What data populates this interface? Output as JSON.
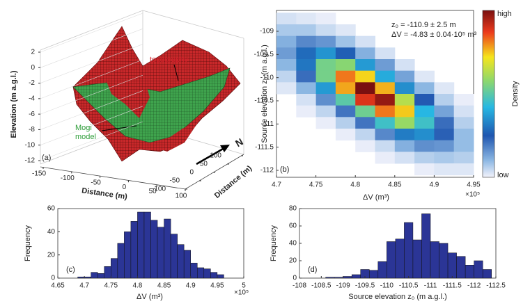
{
  "chart_data": [
    {
      "type": "surface3d",
      "panel_label": "(a)",
      "z_label": "Elevation (m a.g.l.)",
      "x_label": "Distance (m)",
      "y_label": "Distance (m)",
      "zticks": [
        2,
        0,
        -2,
        -4,
        -6,
        -8,
        -10,
        -12
      ],
      "xticks": [
        -150,
        -100,
        -50,
        0,
        50,
        100
      ],
      "yticks": [
        100,
        50,
        0,
        -50,
        -100
      ],
      "annotations": [
        "topography",
        "Mogi model"
      ],
      "north_label": "N"
    },
    {
      "type": "heatmap",
      "panel_label": "(b)",
      "x_label": "ΔV (m³)",
      "y_label": "Source elevation z₀ (m a.g.l.)",
      "x_offset_label": "×10⁵",
      "annotations": [
        "z₀ = -110.9 ± 2.5 m",
        "ΔV = -4.83 ± 0.04·10⁵ m³"
      ],
      "colorbar_label": "Density",
      "colorbar_high": "high",
      "colorbar_low": "low",
      "xlim": [
        4.7,
        4.95
      ],
      "ylim": [
        -112.15,
        -108.55
      ],
      "xticks": [
        4.7,
        4.75,
        4.8,
        4.85,
        4.9,
        4.95
      ],
      "yticks": [
        -109,
        -109.5,
        -110,
        -110.5,
        -111,
        -111.5,
        -112
      ],
      "x": [
        4.7125,
        4.7375,
        4.7625,
        4.7875,
        4.8125,
        4.8375,
        4.8625,
        4.8875,
        4.9125,
        4.9375
      ],
      "y": [
        -108.725,
        -108.975,
        -109.225,
        -109.475,
        -109.725,
        -109.975,
        -110.225,
        -110.475,
        -110.725,
        -110.975,
        -111.225,
        -111.475,
        -111.725,
        -111.975
      ],
      "values": [
        [
          0.03,
          0.02,
          0.01,
          null,
          null,
          null,
          null,
          null,
          null,
          null
        ],
        [
          0.07,
          0.07,
          0.04,
          0.02,
          null,
          null,
          null,
          null,
          null,
          null
        ],
        [
          0.11,
          0.17,
          0.15,
          0.08,
          0.03,
          null,
          null,
          null,
          null,
          null
        ],
        [
          0.14,
          0.28,
          0.35,
          0.26,
          0.11,
          0.03,
          null,
          null,
          null,
          null
        ],
        [
          0.1,
          0.3,
          0.53,
          0.56,
          0.36,
          0.14,
          0.03,
          null,
          null,
          null
        ],
        [
          0.05,
          0.21,
          0.53,
          0.8,
          0.72,
          0.39,
          0.13,
          0.02,
          null,
          null
        ],
        [
          0.02,
          0.1,
          0.36,
          0.76,
          0.98,
          0.75,
          0.34,
          0.1,
          0.02,
          null
        ],
        [
          null,
          0.03,
          0.16,
          0.49,
          0.87,
          0.95,
          0.62,
          0.24,
          0.06,
          0.01
        ],
        [
          null,
          0.01,
          0.05,
          0.2,
          0.52,
          0.8,
          0.73,
          0.41,
          0.13,
          0.03
        ],
        [
          null,
          null,
          0.01,
          0.06,
          0.2,
          0.45,
          0.58,
          0.45,
          0.21,
          0.06
        ],
        [
          null,
          null,
          null,
          0.01,
          0.05,
          0.17,
          0.31,
          0.34,
          0.23,
          0.09
        ],
        [
          null,
          null,
          null,
          null,
          0.01,
          0.04,
          0.11,
          0.16,
          0.15,
          0.09
        ],
        [
          null,
          null,
          null,
          null,
          null,
          0.01,
          0.03,
          0.06,
          0.07,
          0.06
        ],
        [
          null,
          null,
          null,
          null,
          null,
          null,
          null,
          0.01,
          0.02,
          0.02
        ]
      ]
    },
    {
      "type": "histogram",
      "panel_label": "(c)",
      "x_label": "ΔV (m³)",
      "y_label": "Frequency",
      "x_offset_label": "×10⁵",
      "color": "#2b3596",
      "xlim": [
        4.65,
        5
      ],
      "ylim": [
        0,
        60
      ],
      "xticks": [
        4.65,
        4.7,
        4.75,
        4.8,
        4.85,
        4.9,
        4.95,
        5
      ],
      "yticks": [
        0,
        20,
        40,
        60
      ],
      "bins": [
        4.6875,
        4.7,
        4.7125,
        4.725,
        4.7375,
        4.75,
        4.7625,
        4.775,
        4.7875,
        4.8,
        4.8125,
        4.825,
        4.8375,
        4.85,
        4.8625,
        4.875,
        4.8875,
        4.9,
        4.9125,
        4.925,
        4.9375,
        4.95,
        4.9625
      ],
      "values": [
        1,
        1,
        5,
        4,
        10,
        17,
        30,
        40,
        49,
        57,
        57,
        50,
        44,
        51,
        38,
        29,
        24,
        13,
        9,
        8,
        5,
        3
      ]
    },
    {
      "type": "histogram",
      "panel_label": "(d)",
      "x_label": "Source elevation z₀ (m a.g.l.)",
      "y_label": "Frequency",
      "color": "#2b3596",
      "xlim": [
        -108,
        -112.5
      ],
      "ylim": [
        0,
        80
      ],
      "xticks": [
        -108,
        -108.5,
        -109,
        -109.5,
        -110,
        -110.5,
        -111,
        -111.5,
        -112,
        -112.5
      ],
      "yticks": [
        0,
        20,
        40,
        60,
        80
      ],
      "bins": [
        -108.6,
        -108.8,
        -109,
        -109.2,
        -109.4,
        -109.6,
        -109.8,
        -110,
        -110.2,
        -110.4,
        -110.6,
        -110.8,
        -111,
        -111.2,
        -111.4,
        -111.6,
        -111.8,
        -112,
        -112.2,
        -112.4
      ],
      "values": [
        1,
        1,
        2,
        4,
        10,
        9,
        19,
        42,
        45,
        64,
        44,
        74,
        42,
        40,
        29,
        25,
        15,
        20,
        10
      ]
    }
  ]
}
